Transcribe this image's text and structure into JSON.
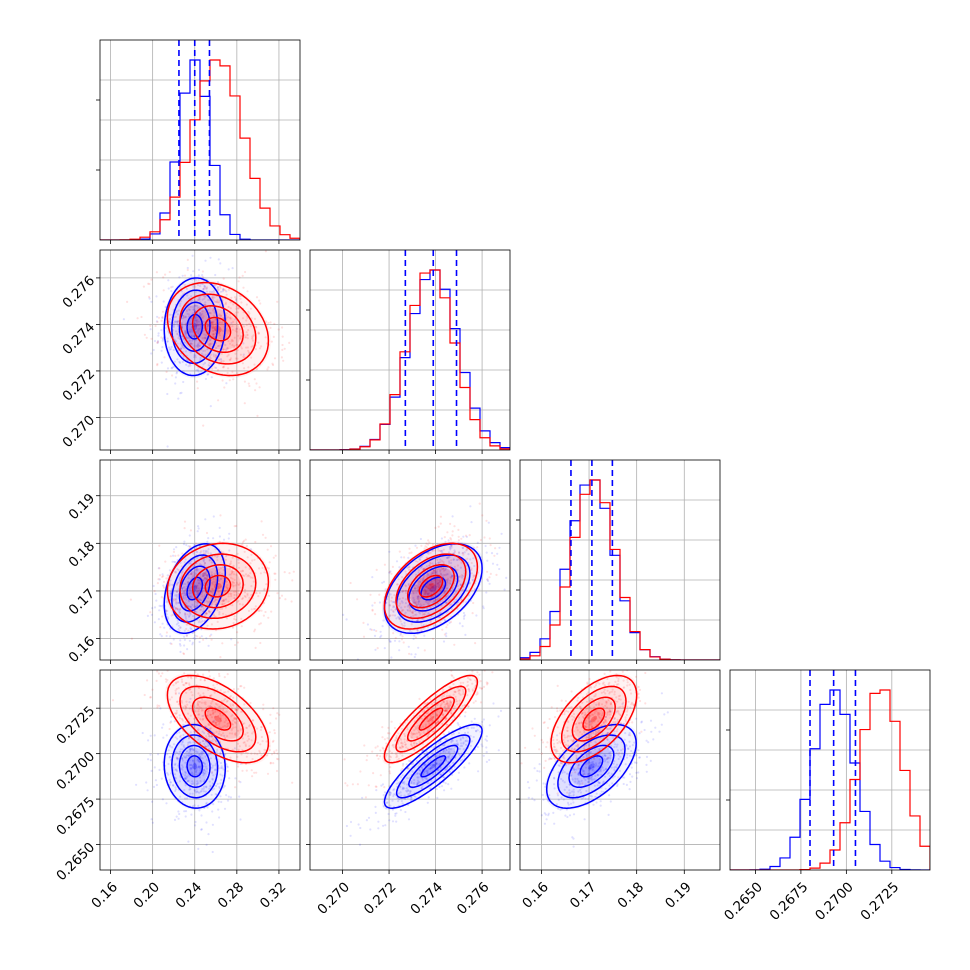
{
  "colors": {
    "red": "#ff0000",
    "blue": "#0000ff",
    "grid": "#b0b0b0",
    "frame": "#000000"
  },
  "chart_data": {
    "type": "corner",
    "params": [
      {
        "range": [
          0.15,
          0.34
        ],
        "ticks": [
          "0.16",
          "0.20",
          "0.24",
          "0.28",
          "0.32"
        ]
      },
      {
        "range": [
          0.2686,
          0.2772
        ],
        "ticks": [
          "0.270",
          "0.272",
          "0.274",
          "0.276"
        ]
      },
      {
        "range": [
          0.1555,
          0.1975
        ],
        "ticks": [
          "0.16",
          "0.17",
          "0.18",
          "0.19"
        ]
      },
      {
        "range": [
          0.2636,
          0.2746
        ],
        "ticks": [
          "0.2650",
          "0.2675",
          "0.2700",
          "0.2725"
        ]
      }
    ],
    "series": [
      {
        "color": "#0000ff",
        "mean": [
          0.24,
          0.2739,
          0.1705,
          0.2693
        ],
        "std": [
          0.0145,
          0.00105,
          0.0047,
          0.00115
        ],
        "corr": {
          "0-1": 0.05,
          "0-2": 0.35,
          "0-3": -0.05,
          "1-2": 0.45,
          "1-3": 0.85,
          "2-3": 0.55
        },
        "quantiles": [
          [
            0.225,
            0.24,
            0.254
          ],
          [
            0.2727,
            0.2739,
            0.2749
          ],
          [
            0.1662,
            0.1706,
            0.1749
          ],
          [
            0.268,
            0.2693,
            0.2705
          ]
        ]
      },
      {
        "color": "#ff0000",
        "mean": [
          0.262,
          0.2738,
          0.171,
          0.2719
        ],
        "std": [
          0.024,
          0.001,
          0.0045,
          0.0012
        ],
        "corr": {
          "0-1": -0.25,
          "0-2": 0.1,
          "0-3": -0.55,
          "1-2": 0.45,
          "1-3": 0.85,
          "2-3": 0.55
        },
        "quantiles": []
      }
    ],
    "grid": true
  }
}
